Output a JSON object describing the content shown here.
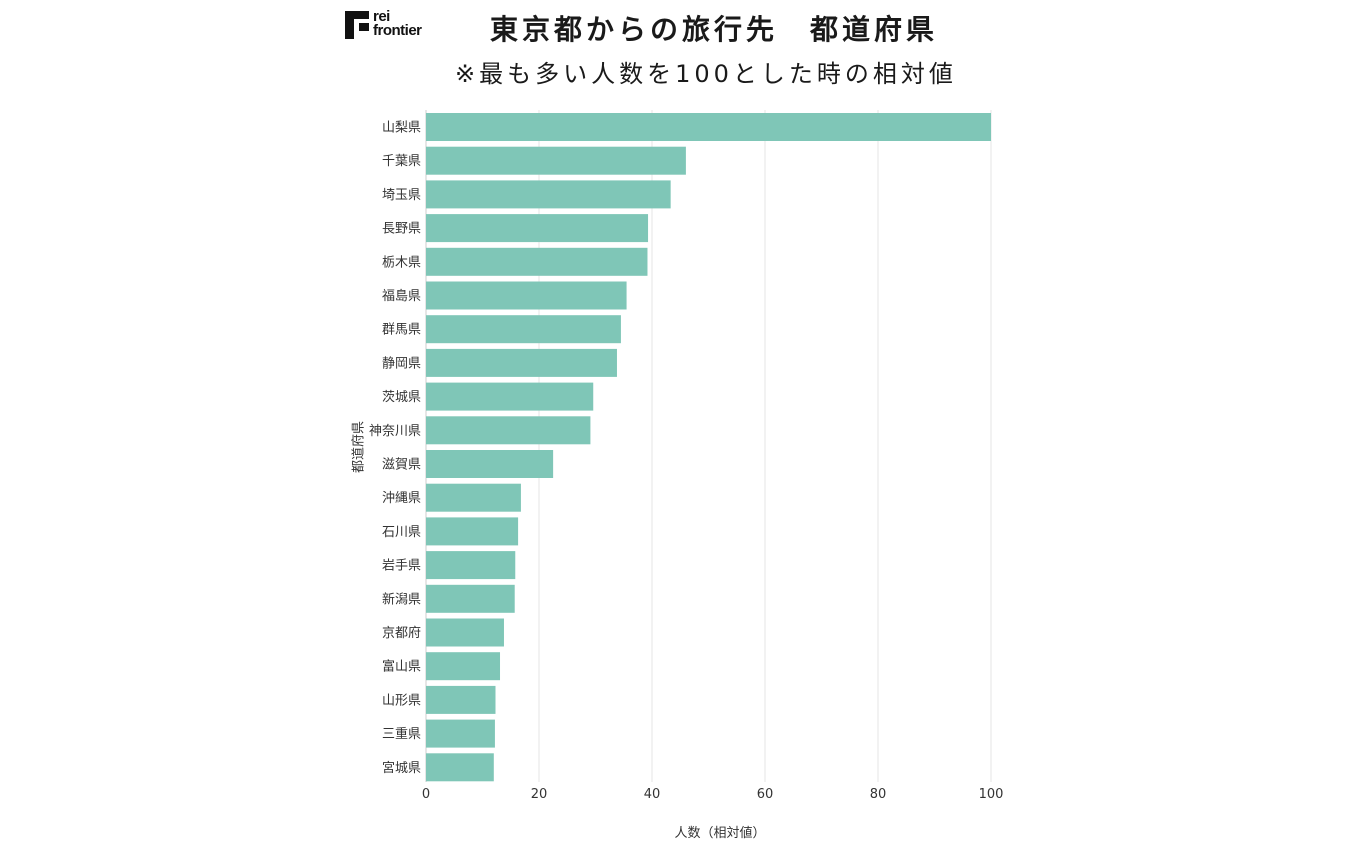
{
  "header": {
    "logo_line1": "rei",
    "logo_line2": "frontier",
    "title": "東京都からの旅行先　都道府県",
    "subtitle": "※最も多い人数を100とした時の相対値"
  },
  "colors": {
    "bar": "#7fc6b7",
    "grid": "#e6e6e6",
    "axis_text": "#333333"
  },
  "chart_data": {
    "type": "bar",
    "orientation": "horizontal",
    "xlabel": "人数（相対値）",
    "ylabel": "都道府県",
    "xlim": [
      0,
      100
    ],
    "xticks": [
      0,
      20,
      40,
      60,
      80,
      100
    ],
    "grid": "vertical",
    "categories": [
      "山梨県",
      "千葉県",
      "埼玉県",
      "長野県",
      "栃木県",
      "福島県",
      "群馬県",
      "静岡県",
      "茨城県",
      "神奈川県",
      "滋賀県",
      "沖縄県",
      "石川県",
      "岩手県",
      "新潟県",
      "京都府",
      "富山県",
      "山形県",
      "三重県",
      "宮城県"
    ],
    "values": [
      100,
      46,
      43.3,
      39.3,
      39.2,
      35.5,
      34.5,
      33.8,
      29.6,
      29.1,
      22.5,
      16.8,
      16.3,
      15.8,
      15.7,
      13.8,
      13.1,
      12.3,
      12.2,
      12
    ]
  }
}
